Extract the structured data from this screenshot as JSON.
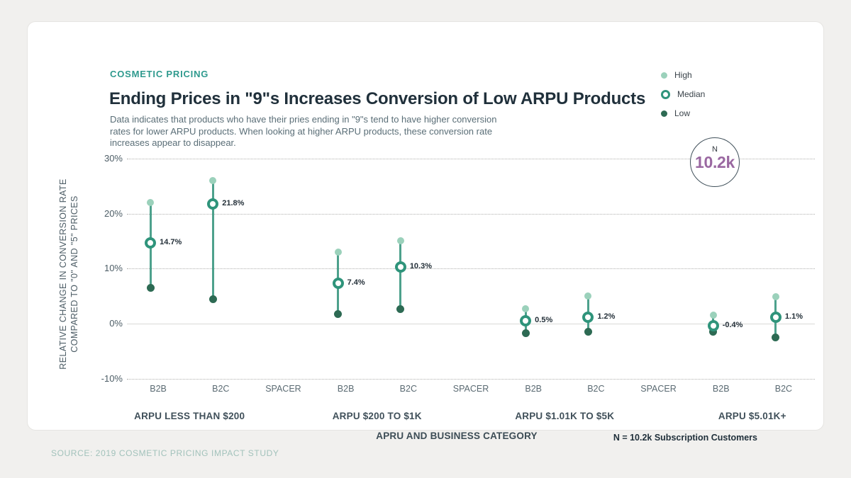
{
  "header": {
    "eyebrow": "COSMETIC PRICING",
    "title": "Ending Prices in \"9\"s Increases Conversion of Low ARPU Products",
    "subtitle_lines": [
      "Data indicates that products who have their pries ending in \"9\"s tend to have higher conversion",
      "rates for lower ARPU products. When looking at higher ARPU products, these conversion rate",
      "increases appear to disappear."
    ]
  },
  "legend": {
    "items": [
      {
        "label": "High",
        "marker": "dot-high"
      },
      {
        "label": "Median",
        "marker": "ring"
      },
      {
        "label": "Low",
        "marker": "dot-low"
      }
    ]
  },
  "badge": {
    "label": "N",
    "value": "10.2k"
  },
  "note": "N = 10.2k Subscription Customers",
  "source": "SOURCE: 2019 COSMETIC PRICING IMPACT STUDY",
  "chart_data": {
    "type": "dumbbell",
    "title": "Ending Prices in \"9\"s Increases Conversion of Low ARPU Products",
    "xlabel": "APRU AND BUSINESS CATEGORY",
    "ylabel_lines": [
      "RELATIVE CHANGE IN CONVERSION RATE",
      "COMPARED TO \"0\" AND \"5\" PRICES"
    ],
    "ylim": [
      -10,
      30
    ],
    "grid": "dotted horizontal, solid zero line",
    "legend_position": "top-right",
    "y_ticks": [
      {
        "label": "30%",
        "value": 30
      },
      {
        "label": "20%",
        "value": 20
      },
      {
        "label": "10%",
        "value": 10
      },
      {
        "label": "0%",
        "value": 0
      },
      {
        "label": "-10%",
        "value": -10
      }
    ],
    "x_slots": [
      "B2B",
      "B2C",
      "SPACER",
      "B2B",
      "B2C",
      "SPACER",
      "B2B",
      "B2C",
      "SPACER",
      "B2B",
      "B2C"
    ],
    "series_names": [
      "High",
      "Median",
      "Low"
    ],
    "groups": [
      {
        "label": "ARPU LESS THAN $200",
        "points": [
          {
            "category": "B2B",
            "high": 22.0,
            "median": 14.7,
            "low": 6.5,
            "median_label": "14.7%"
          },
          {
            "category": "B2C",
            "high": 26.0,
            "median": 21.8,
            "low": 4.5,
            "median_label": "21.8%"
          }
        ]
      },
      {
        "label": "ARPU $200 TO $1K",
        "points": [
          {
            "category": "B2B",
            "high": 13.0,
            "median": 7.4,
            "low": 1.7,
            "median_label": "7.4%"
          },
          {
            "category": "B2C",
            "high": 15.0,
            "median": 10.3,
            "low": 2.6,
            "median_label": "10.3%"
          }
        ]
      },
      {
        "label": "ARPU $1.01K TO $5K",
        "points": [
          {
            "category": "B2B",
            "high": 2.7,
            "median": 0.5,
            "low": -1.8,
            "median_label": "0.5%"
          },
          {
            "category": "B2C",
            "high": 5.0,
            "median": 1.2,
            "low": -1.5,
            "median_label": "1.2%"
          }
        ]
      },
      {
        "label": "ARPU $5.01K+",
        "points": [
          {
            "category": "B2B",
            "high": 1.5,
            "median": -0.4,
            "low": -1.5,
            "median_label": "-0.4%"
          },
          {
            "category": "B2C",
            "high": 4.9,
            "median": 1.1,
            "low": -2.5,
            "median_label": "1.1%"
          }
        ]
      }
    ],
    "colors": {
      "high": "#9bd1bb",
      "median": "#2f947b",
      "low": "#2d6a53",
      "line": "#4da18c",
      "grid": "#b0b0ae",
      "zero_line": "#d9d9d7",
      "accent_teal": "#2f9a8e",
      "badge_value": "#9a68a1"
    }
  }
}
